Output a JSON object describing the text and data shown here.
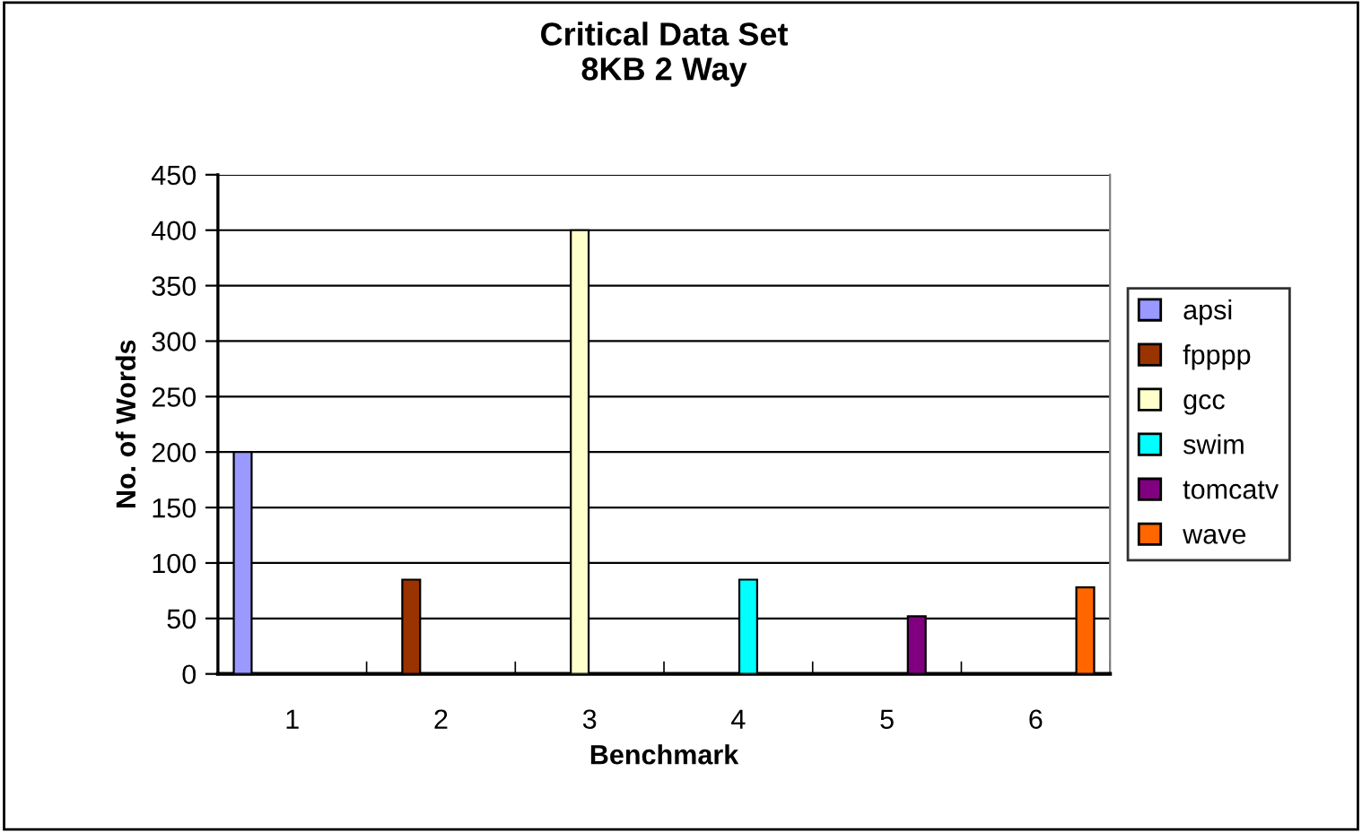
{
  "chart_data": {
    "type": "bar",
    "title": "Critical Data Set\n8KB 2 Way",
    "xlabel": "Benchmark",
    "ylabel": "No. of Words",
    "categories": [
      "1",
      "2",
      "3",
      "4",
      "5",
      "6"
    ],
    "series": [
      {
        "name": "apsi",
        "color": "#9999ff",
        "values": [
          200,
          null,
          null,
          null,
          null,
          null
        ]
      },
      {
        "name": "fpppp",
        "color": "#993300",
        "values": [
          null,
          85,
          null,
          null,
          null,
          null
        ]
      },
      {
        "name": "gcc",
        "color": "#ffffcc",
        "values": [
          null,
          null,
          400,
          null,
          null,
          null
        ]
      },
      {
        "name": "swim",
        "color": "#00ffff",
        "values": [
          null,
          null,
          null,
          85,
          null,
          null
        ]
      },
      {
        "name": "tomcatv",
        "color": "#800080",
        "values": [
          null,
          null,
          null,
          null,
          52,
          null
        ]
      },
      {
        "name": "wave",
        "color": "#ff6600",
        "values": [
          null,
          null,
          null,
          null,
          null,
          78
        ]
      }
    ],
    "ylim": [
      0,
      450
    ],
    "yticks": [
      0,
      50,
      100,
      150,
      200,
      250,
      300,
      350,
      400,
      450
    ],
    "grid": "y",
    "legend": "right"
  }
}
